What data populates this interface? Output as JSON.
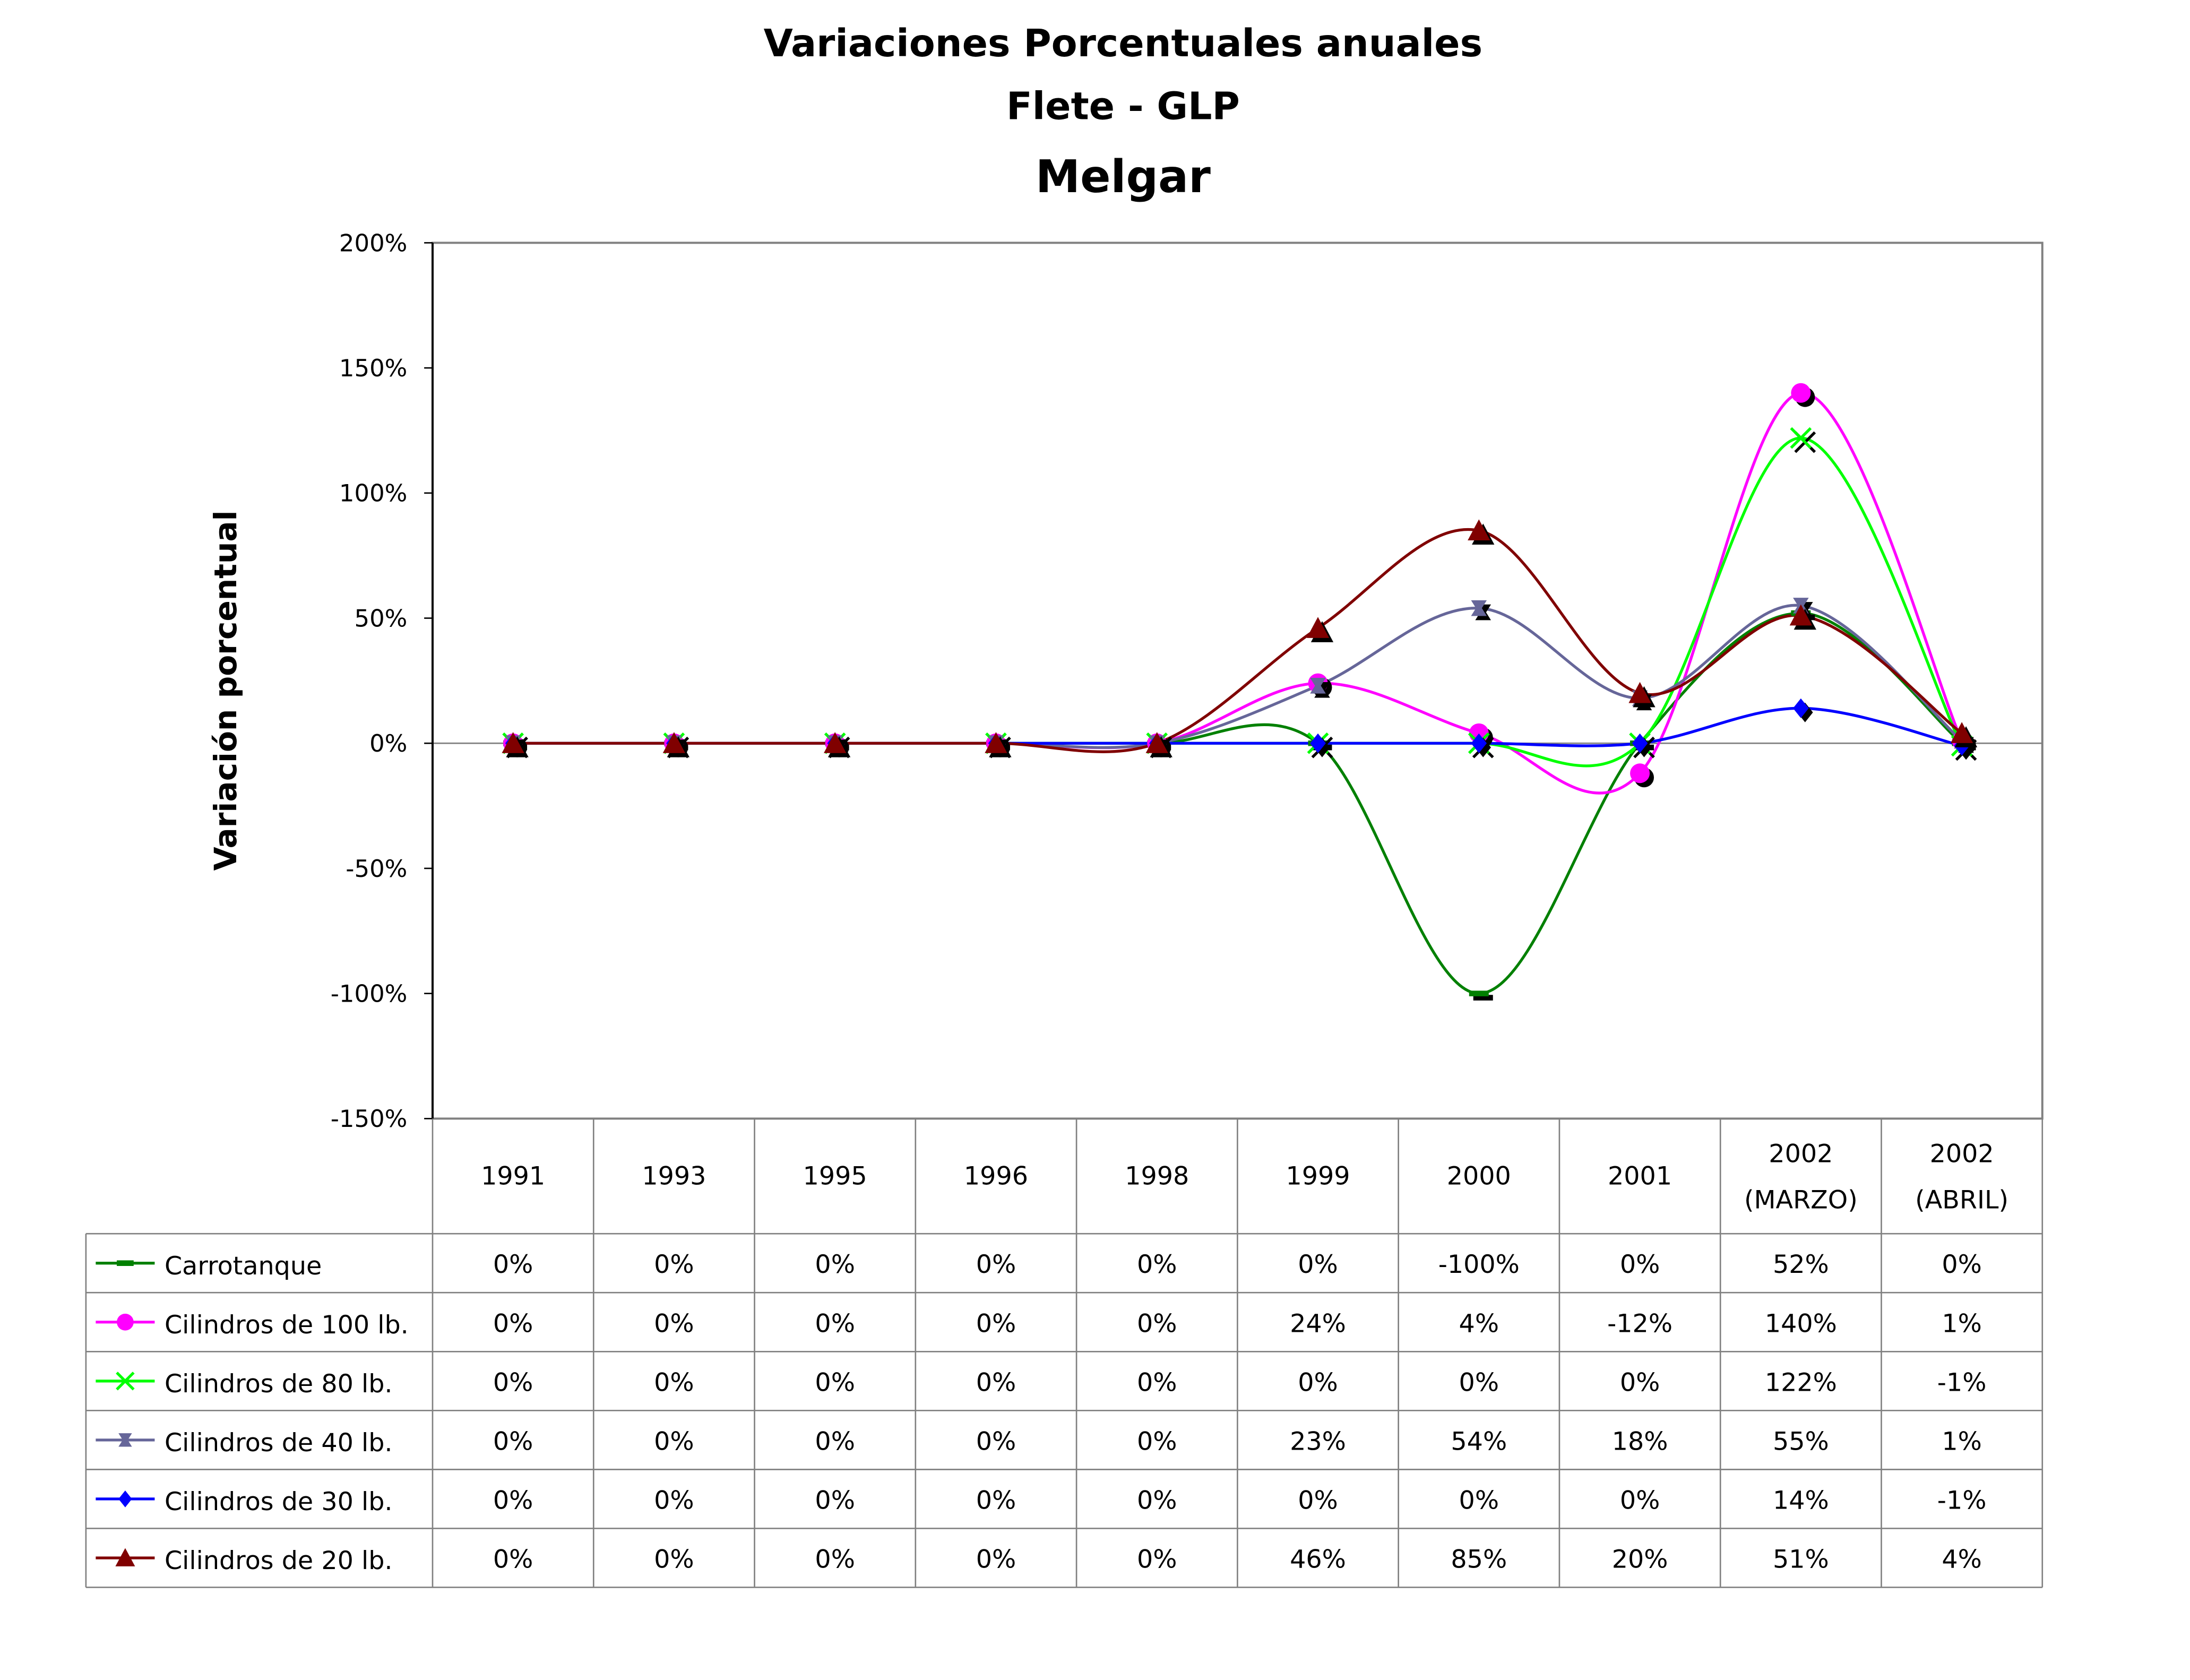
{
  "chart_data": {
    "type": "line",
    "title": "Variaciones Porcentuales anuales",
    "subtitle": "Flete - GLP",
    "subtitle2": "Melgar",
    "xlabel": "",
    "ylabel": "Variación porcentual",
    "ylim": [
      -150,
      200
    ],
    "yticks": [
      200,
      150,
      100,
      50,
      0,
      -50,
      -100,
      -150
    ],
    "ytick_labels": [
      "200%",
      "150%",
      "100%",
      "50%",
      "0%",
      "-50%",
      "-100%",
      "-150%"
    ],
    "categories": [
      [
        "1991"
      ],
      [
        "1993"
      ],
      [
        "1995"
      ],
      [
        "1996"
      ],
      [
        "1998"
      ],
      [
        "1999"
      ],
      [
        "2000"
      ],
      [
        "2001"
      ],
      [
        "2002",
        "(MARZO)"
      ],
      [
        "2002",
        "(ABRIL)"
      ]
    ],
    "grid": false,
    "legend": "data-table-below",
    "series": [
      {
        "name": "Carrotanque",
        "color": "#008000",
        "marker": "dash",
        "values": [
          0,
          0,
          0,
          0,
          0,
          0,
          -100,
          0,
          52,
          0
        ],
        "labels": [
          "0%",
          "0%",
          "0%",
          "0%",
          "0%",
          "0%",
          "-100%",
          "0%",
          "52%",
          "0%"
        ]
      },
      {
        "name": "Cilindros de 100 lb.",
        "color": "#FF00FF",
        "marker": "circle",
        "values": [
          0,
          0,
          0,
          0,
          0,
          24,
          4,
          -12,
          140,
          1
        ],
        "labels": [
          "0%",
          "0%",
          "0%",
          "0%",
          "0%",
          "24%",
          "4%",
          "-12%",
          "140%",
          "1%"
        ]
      },
      {
        "name": "Cilindros de 80 lb.",
        "color": "#00FF00",
        "marker": "x",
        "values": [
          0,
          0,
          0,
          0,
          0,
          0,
          0,
          0,
          122,
          -1
        ],
        "labels": [
          "0%",
          "0%",
          "0%",
          "0%",
          "0%",
          "0%",
          "0%",
          "0%",
          "122%",
          "-1%"
        ]
      },
      {
        "name": "Cilindros de 40 lb.",
        "color": "#666699",
        "marker": "star",
        "values": [
          0,
          0,
          0,
          0,
          0,
          23,
          54,
          18,
          55,
          1
        ],
        "labels": [
          "0%",
          "0%",
          "0%",
          "0%",
          "0%",
          "23%",
          "54%",
          "18%",
          "55%",
          "1%"
        ]
      },
      {
        "name": "Cilindros de 30 lb.",
        "color": "#0000FF",
        "marker": "diamond",
        "values": [
          0,
          0,
          0,
          0,
          0,
          0,
          0,
          0,
          14,
          -1
        ],
        "labels": [
          "0%",
          "0%",
          "0%",
          "0%",
          "0%",
          "0%",
          "0%",
          "0%",
          "14%",
          "-1%"
        ]
      },
      {
        "name": "Cilindros de 20 lb.",
        "color": "#800000",
        "marker": "triangle",
        "values": [
          0,
          0,
          0,
          0,
          0,
          46,
          85,
          20,
          51,
          4
        ],
        "labels": [
          "0%",
          "0%",
          "0%",
          "0%",
          "0%",
          "46%",
          "85%",
          "20%",
          "51%",
          "4%"
        ]
      }
    ]
  }
}
